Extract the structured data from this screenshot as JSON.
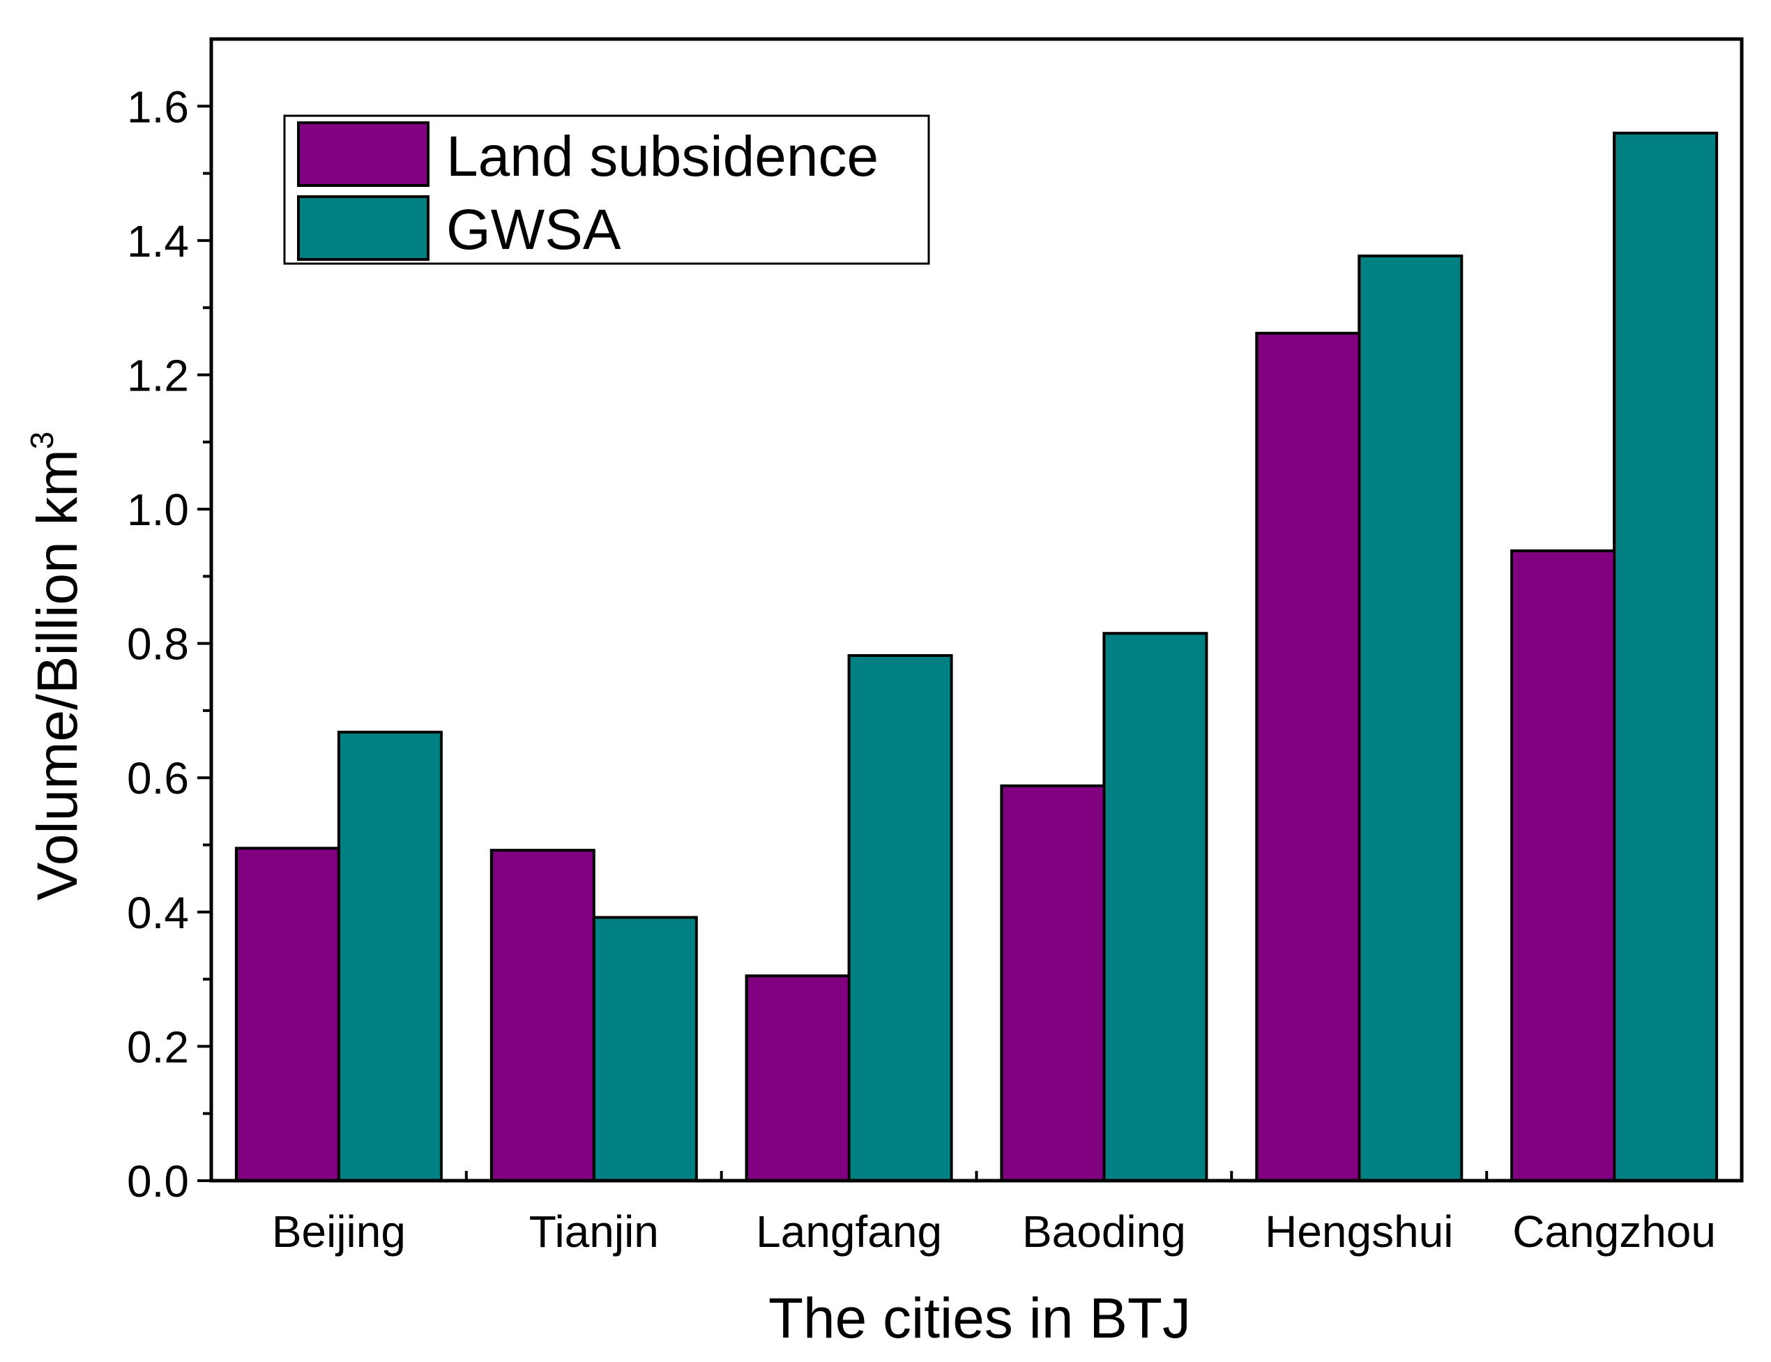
{
  "chart_data": {
    "type": "bar",
    "title": "",
    "xlabel": "The cities in BTJ",
    "ylabel": "Volume/Billion km",
    "ylabel_superscript": "3",
    "categories": [
      "Beijing",
      "Tianjin",
      "Langfang",
      "Baoding",
      "Hengshui",
      "Cangzhou"
    ],
    "series": [
      {
        "name": "Land subsidence",
        "color": "#800080",
        "values": [
          0.495,
          0.492,
          0.305,
          0.588,
          1.262,
          0.938
        ]
      },
      {
        "name": "GWSA",
        "color": "#008080",
        "values": [
          0.668,
          0.392,
          0.782,
          0.815,
          1.377,
          1.56
        ]
      }
    ],
    "ylim": [
      0,
      1.7
    ],
    "yticks": [
      "0.0",
      "0.2",
      "0.4",
      "0.6",
      "0.8",
      "1.0",
      "1.2",
      "1.4",
      "1.6"
    ],
    "grid": false,
    "legend_position": "top-left"
  }
}
